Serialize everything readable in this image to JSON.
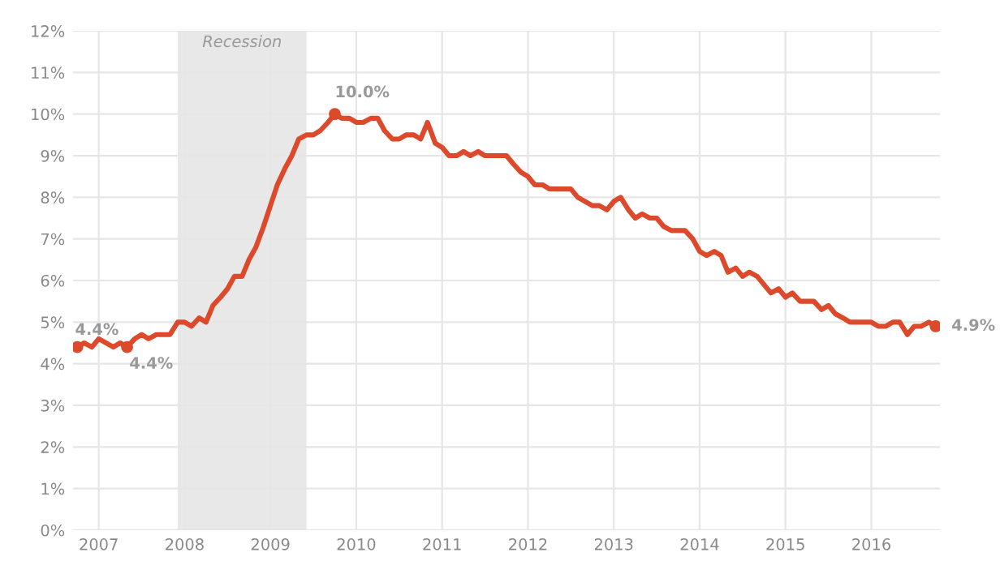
{
  "chart_data": {
    "type": "line",
    "x": [
      2006.75,
      2006.83,
      2006.92,
      2007.0,
      2007.17,
      2007.25,
      2007.33,
      2007.42,
      2007.5,
      2007.58,
      2007.67,
      2007.83,
      2007.92,
      2008.0,
      2008.08,
      2008.17,
      2008.25,
      2008.33,
      2008.42,
      2008.5,
      2008.58,
      2008.67,
      2008.75,
      2008.83,
      2008.92,
      2009.0,
      2009.08,
      2009.17,
      2009.25,
      2009.33,
      2009.42,
      2009.5,
      2009.58,
      2009.67,
      2009.75,
      2009.83,
      2009.92,
      2010.0,
      2010.08,
      2010.17,
      2010.25,
      2010.33,
      2010.42,
      2010.5,
      2010.58,
      2010.67,
      2010.75,
      2010.83,
      2010.92,
      2011.0,
      2011.08,
      2011.17,
      2011.25,
      2011.33,
      2011.42,
      2011.5,
      2011.75,
      2011.83,
      2011.92,
      2012.0,
      2012.08,
      2012.17,
      2012.25,
      2012.5,
      2012.58,
      2012.75,
      2012.83,
      2012.92,
      2013.0,
      2013.08,
      2013.17,
      2013.25,
      2013.33,
      2013.42,
      2013.5,
      2013.58,
      2013.67,
      2013.83,
      2013.92,
      2014.0,
      2014.08,
      2014.17,
      2014.25,
      2014.33,
      2014.42,
      2014.5,
      2014.58,
      2014.67,
      2014.75,
      2014.83,
      2014.92,
      2015.0,
      2015.08,
      2015.17,
      2015.33,
      2015.42,
      2015.5,
      2015.58,
      2015.67,
      2015.75,
      2015.83,
      2016.0,
      2016.08,
      2016.17,
      2016.25,
      2016.33,
      2016.42,
      2016.5,
      2016.58,
      2016.67,
      2016.75
    ],
    "series": [
      {
        "color": "#dc4a2b",
        "values": [
          4.4,
          4.5,
          4.4,
          4.6,
          4.4,
          4.5,
          4.4,
          4.6,
          4.7,
          4.6,
          4.7,
          4.7,
          5.0,
          5.0,
          4.9,
          5.1,
          5.0,
          5.4,
          5.6,
          5.8,
          6.1,
          6.1,
          6.5,
          6.8,
          7.3,
          7.8,
          8.3,
          8.7,
          9.0,
          9.4,
          9.5,
          9.5,
          9.6,
          9.8,
          10.0,
          9.9,
          9.9,
          9.8,
          9.8,
          9.9,
          9.9,
          9.6,
          9.4,
          9.4,
          9.5,
          9.5,
          9.4,
          9.8,
          9.3,
          9.2,
          9.0,
          9.0,
          9.1,
          9.0,
          9.1,
          9.0,
          9.0,
          8.8,
          8.6,
          8.5,
          8.3,
          8.3,
          8.2,
          8.2,
          8.0,
          7.8,
          7.8,
          7.7,
          7.9,
          8.0,
          7.7,
          7.5,
          7.6,
          7.5,
          7.5,
          7.3,
          7.2,
          7.2,
          7.0,
          6.7,
          6.6,
          6.7,
          6.6,
          6.2,
          6.3,
          6.1,
          6.2,
          6.1,
          5.9,
          5.7,
          5.8,
          5.6,
          5.7,
          5.5,
          5.5,
          5.3,
          5.4,
          5.2,
          5.1,
          5.0,
          5.0,
          5.0,
          4.9,
          4.9,
          5.0,
          5.0,
          4.7,
          4.9,
          4.9,
          5.0,
          4.9
        ]
      },
      {
        "type": "scatter",
        "color": "#dc4a2b",
        "marker": "circle",
        "x": [
          2006.75,
          2007.33,
          2009.75,
          2016.75
        ],
        "values": [
          4.4,
          4.4,
          10.0,
          4.9
        ]
      }
    ],
    "annotations": [
      {
        "text": "4.4%",
        "x": 2006.75,
        "y": 4.4
      },
      {
        "text": "4.4%",
        "x": 2007.33,
        "y": 4.4
      },
      {
        "text": "10.0%",
        "x": 2009.75,
        "y": 10.0
      },
      {
        "text": "4.9%",
        "x": 2016.75,
        "y": 4.9
      }
    ],
    "bands": [
      {
        "axis": "x",
        "from": 2007.92,
        "to": 2009.42,
        "label": "Recession",
        "color": "#e8e8e8"
      }
    ],
    "xlim": [
      2006.7,
      2016.8
    ],
    "xticks": [
      2007,
      2008,
      2009,
      2010,
      2011,
      2012,
      2013,
      2014,
      2015,
      2016
    ],
    "ylim": [
      0,
      12
    ],
    "yticks": [
      {
        "value": 0,
        "label": "0%"
      },
      {
        "value": 1,
        "label": "1%"
      },
      {
        "value": 2,
        "label": "2%"
      },
      {
        "value": 3,
        "label": "3%"
      },
      {
        "value": 4,
        "label": "4%"
      },
      {
        "value": 5,
        "label": "5%"
      },
      {
        "value": 6,
        "label": "6%"
      },
      {
        "value": 7,
        "label": "7%"
      },
      {
        "value": 8,
        "label": "8%"
      },
      {
        "value": 9,
        "label": "9%"
      },
      {
        "value": 10,
        "label": "10%"
      },
      {
        "value": 11,
        "label": "11%"
      },
      {
        "value": 12,
        "label": "12%"
      }
    ],
    "grid": true
  }
}
